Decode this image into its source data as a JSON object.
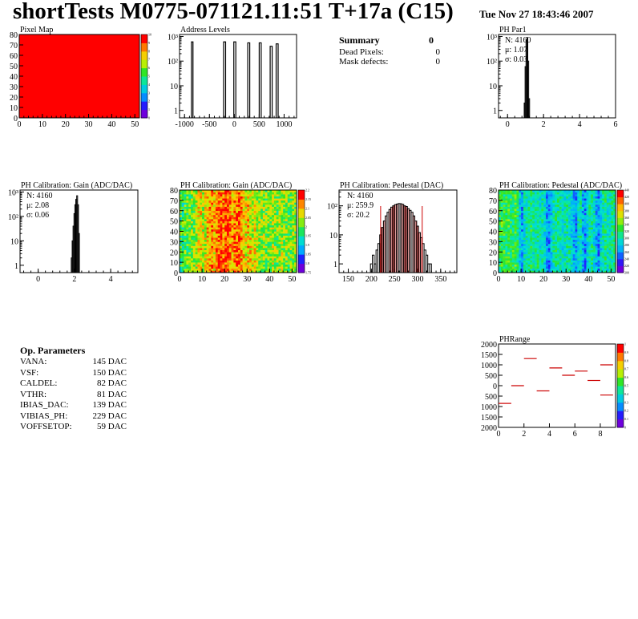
{
  "header": {
    "title": "shortTests M0775-071121.11:51 T+17a (C15)",
    "date": "Tue Nov 27 18:43:46 2007"
  },
  "summary": {
    "title": "Summary",
    "title_value": "0",
    "rows": [
      {
        "label": "Dead Pixels:",
        "value": "0"
      },
      {
        "label": "Mask defects:",
        "value": "0"
      }
    ]
  },
  "op_parameters": {
    "title": "Op. Parameters",
    "rows": [
      {
        "label": "VANA:",
        "value": "145 DAC"
      },
      {
        "label": "VSF:",
        "value": "150 DAC"
      },
      {
        "label": "CALDEL:",
        "value": "82 DAC"
      },
      {
        "label": "VTHR:",
        "value": "81 DAC"
      },
      {
        "label": "IBIAS_DAC:",
        "value": "139 DAC"
      },
      {
        "label": "VIBIAS_PH:",
        "value": "229 DAC"
      },
      {
        "label": "VOFFSETOP:",
        "value": "59 DAC"
      }
    ]
  },
  "chart_data": [
    {
      "id": "pixel_map",
      "type": "heatmap",
      "title": "Pixel Map",
      "xlim": [
        0,
        52
      ],
      "ylim": [
        0,
        80
      ],
      "xticks": [
        0,
        10,
        20,
        30,
        40,
        50
      ],
      "yticks": [
        0,
        10,
        20,
        30,
        40,
        50,
        60,
        70,
        80
      ],
      "fill_value": 10,
      "zticks": [
        0,
        1,
        2,
        3,
        4,
        5,
        6,
        7,
        8,
        9,
        10
      ],
      "colors": {
        "fill": "#ff0000"
      }
    },
    {
      "id": "address_levels",
      "type": "bar",
      "title": "Address Levels",
      "xlim": [
        -1100,
        1250
      ],
      "ylog": true,
      "ylim": [
        0.5,
        1200
      ],
      "xticks": [
        -1000,
        -500,
        0,
        500,
        1000
      ],
      "ytick_labels": [
        "1",
        "10",
        "10²",
        "10³"
      ],
      "peaks": [
        {
          "x": [
            -860,
            -830
          ],
          "y": 600
        },
        {
          "x": [
            -215,
            -175
          ],
          "y": 600
        },
        {
          "x": [
            -10,
            30
          ],
          "y": 600
        },
        {
          "x": [
            270,
            310
          ],
          "y": 550
        },
        {
          "x": [
            500,
            540
          ],
          "y": 550
        },
        {
          "x": [
            720,
            760
          ],
          "y": 400
        },
        {
          "x": [
            840,
            880
          ],
          "y": 500
        }
      ]
    },
    {
      "id": "ph_par1",
      "type": "bar",
      "title": "PH Par1",
      "xlim": [
        -0.5,
        6
      ],
      "ylog": true,
      "ylim": [
        0.5,
        1200
      ],
      "xticks": [
        0,
        2,
        4,
        6
      ],
      "ytick_labels": [
        "1",
        "10",
        "10²",
        "10³"
      ],
      "stats": {
        "n": "N: 4160",
        "mean": "μ: 1.07",
        "sigma": "σ: 0.03"
      },
      "x": [
        0.95,
        1.0,
        1.05,
        1.1,
        1.15,
        1.2
      ],
      "y": [
        2,
        60,
        700,
        900,
        100,
        3
      ]
    },
    {
      "id": "gain_hist",
      "type": "bar",
      "title": "PH Calibration: Gain (ADC/DAC)",
      "xlim": [
        -1,
        5.5
      ],
      "ylog": true,
      "ylim": [
        0.5,
        1200
      ],
      "xticks": [
        0,
        2,
        4
      ],
      "ytick_labels": [
        "1",
        "10",
        "10²",
        "10³"
      ],
      "stats": {
        "n": "N: 4160",
        "mean": "μ: 2.08",
        "sigma": "σ: 0.06"
      },
      "x": [
        1.85,
        1.9,
        1.95,
        2.0,
        2.05,
        2.1,
        2.15,
        2.2,
        2.25
      ],
      "y": [
        2,
        10,
        40,
        130,
        300,
        500,
        700,
        300,
        20
      ]
    },
    {
      "id": "gain_map",
      "type": "heatmap",
      "title": "PH Calibration: Gain (ADC/DAC)",
      "xlim": [
        0,
        52
      ],
      "ylim": [
        0,
        80
      ],
      "xticks": [
        0,
        10,
        20,
        30,
        40,
        50
      ],
      "yticks": [
        0,
        10,
        20,
        30,
        40,
        50,
        60,
        70,
        80
      ],
      "zlim": [
        1.75,
        2.2
      ],
      "zticks": [
        1.75,
        1.8,
        1.85,
        1.9,
        1.95,
        2.0,
        2.05,
        2.1,
        2.15,
        2.2
      ],
      "ztick_labels": [
        "1.75",
        "1.8",
        "1.85",
        "1.9",
        "1.95",
        "2",
        "2.05",
        "2.1",
        "2.15",
        "2.2"
      ],
      "column_profile": "high near columns 14-28, lower near columns 0-6 and 36-52",
      "column_mean": [
        1.98,
        1.98,
        2.0,
        2.0,
        2.01,
        2.02,
        2.03,
        2.05,
        2.08,
        2.09,
        2.06,
        2.07,
        2.11,
        2.13,
        2.14,
        2.1,
        2.15,
        2.17,
        2.18,
        2.14,
        2.17,
        2.18,
        2.14,
        2.12,
        2.15,
        2.16,
        2.17,
        2.13,
        2.1,
        2.08,
        2.11,
        2.09,
        2.06,
        2.08,
        2.05,
        2.04,
        2.03,
        2.04,
        2.02,
        2.03,
        2.02,
        2.05,
        2.03,
        2.02,
        2.04,
        2.05,
        2.02,
        2.03,
        2.01,
        2.02,
        2.03,
        2.02
      ]
    },
    {
      "id": "pedestal_hist",
      "type": "bar",
      "title": "PH Calibration: Pedestal (DAC)",
      "xlim": [
        130,
        385
      ],
      "ylog": true,
      "ylim": [
        0.5,
        350
      ],
      "xticks": [
        150,
        200,
        250,
        300,
        350
      ],
      "ytick_labels": [
        "1",
        "10",
        "10²"
      ],
      "stats": {
        "n": "N: 4160",
        "mean": "μ: 259.9",
        "sigma": "σ: 20.2"
      },
      "fit_range": [
        220,
        310
      ],
      "x": [
        200,
        204,
        208,
        212,
        216,
        220,
        224,
        228,
        232,
        236,
        240,
        244,
        248,
        252,
        256,
        260,
        264,
        268,
        272,
        276,
        280,
        284,
        288,
        292,
        296,
        300,
        304,
        308,
        312,
        316,
        320,
        324,
        328
      ],
      "y": [
        1,
        2,
        1,
        3,
        5,
        10,
        18,
        30,
        45,
        60,
        75,
        90,
        100,
        110,
        115,
        120,
        118,
        112,
        100,
        95,
        80,
        70,
        60,
        45,
        30,
        20,
        12,
        8,
        5,
        3,
        2,
        1,
        1
      ]
    },
    {
      "id": "pedestal_map",
      "type": "heatmap",
      "title": "PH Calibration: Pedestal (ADC/DAC)",
      "xlim": [
        0,
        52
      ],
      "ylim": [
        0,
        80
      ],
      "xticks": [
        0,
        10,
        20,
        30,
        40,
        50
      ],
      "yticks": [
        0,
        10,
        20,
        30,
        40,
        50,
        60,
        70,
        80
      ],
      "zlim": [
        200,
        440
      ],
      "zticks": [
        200,
        220,
        240,
        260,
        280,
        300,
        320,
        340,
        360,
        380,
        400,
        420,
        440
      ],
      "ztick_labels": [
        "200",
        "220",
        "240",
        "260",
        "280",
        "300",
        "320",
        "340",
        "360",
        "380",
        "400",
        "420",
        "440"
      ],
      "column_profile": "alternating green and cyan stripes; cyan bands near columns 10, 22, 34, 38, 44",
      "column_mean": [
        320,
        330,
        325,
        320,
        328,
        318,
        322,
        330,
        315,
        280,
        265,
        290,
        300,
        310,
        315,
        300,
        305,
        310,
        295,
        300,
        285,
        260,
        255,
        280,
        300,
        310,
        305,
        300,
        290,
        295,
        305,
        300,
        285,
        265,
        260,
        290,
        300,
        270,
        255,
        285,
        300,
        305,
        290,
        270,
        255,
        285,
        300,
        310,
        295,
        300,
        310,
        305
      ]
    },
    {
      "id": "ph_range",
      "type": "scatter",
      "title": "PHRange",
      "xlim": [
        0,
        9.2
      ],
      "ylim": [
        -2000,
        2000
      ],
      "xticks": [
        0,
        2,
        4,
        6,
        8
      ],
      "yticks": [
        2000,
        1500,
        1000,
        500,
        0,
        -500,
        -1000,
        -1500,
        -2000
      ],
      "ytick_labels": [
        "2000",
        "1500",
        "1000",
        "500",
        "0",
        "500",
        "1000",
        "1500",
        "2000"
      ],
      "segments": [
        {
          "x": [
            0,
            1
          ],
          "y": -850
        },
        {
          "x": [
            1,
            2
          ],
          "y": 0
        },
        {
          "x": [
            2,
            3
          ],
          "y": 1300
        },
        {
          "x": [
            3,
            4
          ],
          "y": -250
        },
        {
          "x": [
            4,
            5
          ],
          "y": 850
        },
        {
          "x": [
            5,
            6
          ],
          "y": 500
        },
        {
          "x": [
            6,
            7
          ],
          "y": 700
        },
        {
          "x": [
            7,
            8
          ],
          "y": 250
        },
        {
          "x": [
            8,
            9
          ],
          "y": 1000
        },
        {
          "x": [
            8,
            9
          ],
          "y": -450
        }
      ],
      "zticks": [
        0,
        0.1,
        0.2,
        0.3,
        0.4,
        0.5,
        0.6,
        0.7,
        0.8,
        0.9,
        1
      ],
      "colors": {
        "segment": "#cc0000"
      }
    }
  ],
  "colors": {
    "fit": "#cc0000",
    "text": "#000000"
  }
}
